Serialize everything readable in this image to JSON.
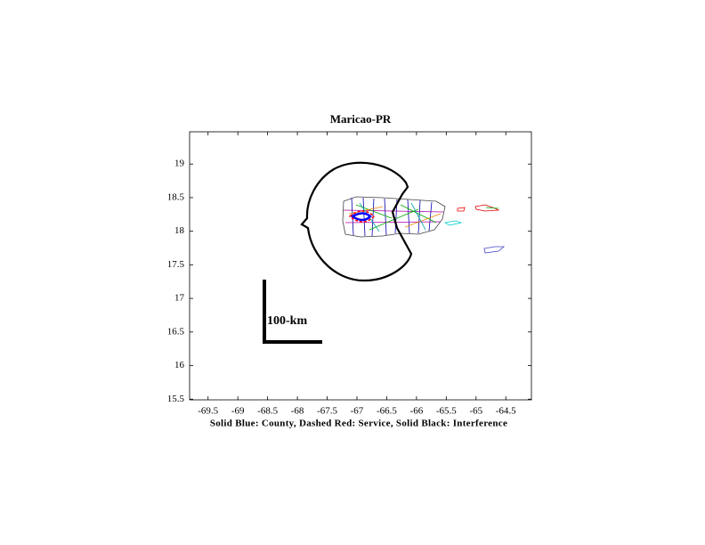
{
  "chart_data": {
    "type": "map",
    "title": "Maricao-PR",
    "xlabel": "Solid Blue: County, Dashed Red: Service, Solid Black: Interference",
    "annotation": "100-km",
    "xlim": [
      -69.81,
      -64.07
    ],
    "xticks": [
      -69.5,
      -69,
      -68.5,
      -68,
      -67.5,
      -67,
      -66.5,
      -66,
      -65.5,
      -65,
      -64.5
    ],
    "ylim": [
      15.49,
      19.48
    ],
    "yticks": [
      15.5,
      16,
      16.5,
      17,
      17.5,
      18,
      18.5,
      19
    ]
  }
}
